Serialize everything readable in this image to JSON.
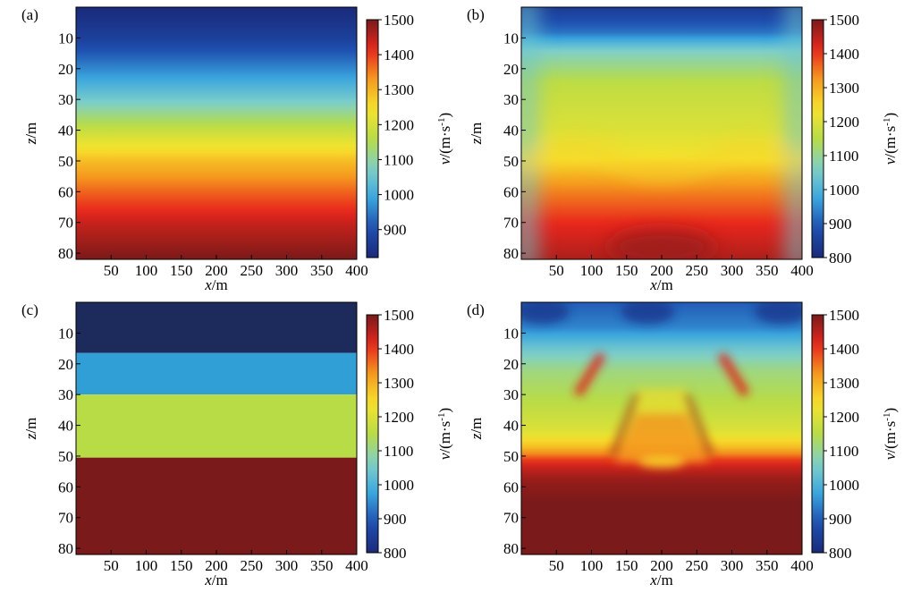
{
  "colors": {
    "colormap": [
      "#1a2a7a",
      "#1e4fb0",
      "#3aa6de",
      "#7fd0c8",
      "#b8dc46",
      "#f6e42c",
      "#f59a1e",
      "#e8261c",
      "#7a1a1a"
    ]
  },
  "chart_data": [
    {
      "type": "heatmap",
      "panel_label": "(a)",
      "xlabel_var": "x",
      "xlabel_unit": "/m",
      "ylabel_var": "z",
      "ylabel_unit": "/m",
      "xlim": [
        0,
        400
      ],
      "ylim": [
        0,
        82
      ],
      "y_inverted": true,
      "x_ticks": [
        50,
        100,
        150,
        200,
        250,
        300,
        350,
        400
      ],
      "y_ticks": [
        10,
        20,
        30,
        40,
        50,
        60,
        70,
        80
      ],
      "colorbar": {
        "var": "v",
        "unit_text": "/(m·s",
        "unit_exp": "-1",
        "unit_close": ")",
        "vmin": 820,
        "vmax": 1500,
        "ticks": [
          900,
          1000,
          1100,
          1200,
          1300,
          1400,
          1500
        ]
      },
      "field": {
        "kind": "gradient",
        "depth_profile": [
          [
            0,
            820
          ],
          [
            10,
            870
          ],
          [
            20,
            960
          ],
          [
            30,
            1060
          ],
          [
            40,
            1180
          ],
          [
            50,
            1290
          ],
          [
            60,
            1370
          ],
          [
            70,
            1440
          ],
          [
            82,
            1500
          ]
        ]
      }
    },
    {
      "type": "heatmap",
      "panel_label": "(b)",
      "xlabel_var": "x",
      "xlabel_unit": "/m",
      "ylabel_var": "z",
      "ylabel_unit": "/m",
      "xlim": [
        0,
        400
      ],
      "ylim": [
        0,
        82
      ],
      "y_inverted": true,
      "x_ticks": [
        50,
        100,
        150,
        200,
        250,
        300,
        350,
        400
      ],
      "y_ticks": [
        10,
        20,
        30,
        40,
        50,
        60,
        70,
        80
      ],
      "colorbar": {
        "var": "v",
        "unit_text": "/(m·s",
        "unit_exp": "-1",
        "unit_close": ")",
        "vmin": 800,
        "vmax": 1500,
        "ticks": [
          800,
          900,
          1000,
          1100,
          1200,
          1300,
          1400,
          1500
        ]
      },
      "field": {
        "kind": "smoothed",
        "depth_profile": [
          [
            0,
            840
          ],
          [
            8,
            920
          ],
          [
            14,
            1060
          ],
          [
            25,
            1160
          ],
          [
            40,
            1200
          ],
          [
            48,
            1230
          ],
          [
            58,
            1330
          ],
          [
            70,
            1410
          ],
          [
            82,
            1460
          ]
        ]
      }
    },
    {
      "type": "heatmap",
      "panel_label": "(c)",
      "xlabel_var": "x",
      "xlabel_unit": "/m",
      "ylabel_var": "z",
      "ylabel_unit": "/m",
      "xlim": [
        0,
        400
      ],
      "ylim": [
        0,
        82
      ],
      "y_inverted": true,
      "x_ticks": [
        50,
        100,
        150,
        200,
        250,
        300,
        350,
        400
      ],
      "y_ticks": [
        10,
        20,
        30,
        40,
        50,
        60,
        70,
        80
      ],
      "colorbar": {
        "var": "v",
        "unit_text": "/(m·s",
        "unit_exp": "-1",
        "unit_close": ")",
        "vmin": 800,
        "vmax": 1500,
        "ticks": [
          800,
          900,
          1000,
          1100,
          1200,
          1300,
          1400,
          1500
        ]
      },
      "field": {
        "kind": "layers",
        "layers": [
          {
            "z_top": 0,
            "z_bottom": 16.5,
            "velocity": 820,
            "color": "#1c2a5c"
          },
          {
            "z_top": 16.5,
            "z_bottom": 30,
            "velocity": 1000,
            "color": "#2f9fd6"
          },
          {
            "z_top": 30,
            "z_bottom": 50.5,
            "velocity": 1200,
            "color": "#b8dc46"
          },
          {
            "z_top": 50.5,
            "z_bottom": 82,
            "velocity": 1500,
            "color": "#7a1a1a"
          }
        ]
      }
    },
    {
      "type": "heatmap",
      "panel_label": "(d)",
      "xlabel_var": "x",
      "xlabel_unit": "/m",
      "ylabel_var": "z",
      "ylabel_unit": "/m",
      "xlim": [
        0,
        400
      ],
      "ylim": [
        0,
        82
      ],
      "y_inverted": true,
      "x_ticks": [
        50,
        100,
        150,
        200,
        250,
        300,
        350,
        400
      ],
      "y_ticks": [
        10,
        20,
        30,
        40,
        50,
        60,
        70,
        80
      ],
      "colorbar": {
        "var": "v",
        "unit_text": "/(m·s",
        "unit_exp": "-1",
        "unit_close": ")",
        "vmin": 800,
        "vmax": 1500,
        "ticks": [
          800,
          900,
          1000,
          1100,
          1200,
          1300,
          1400,
          1500
        ]
      },
      "field": {
        "kind": "inverted",
        "depth_profile": [
          [
            0,
            900
          ],
          [
            8,
            940
          ],
          [
            15,
            1040
          ],
          [
            22,
            1110
          ],
          [
            32,
            1150
          ],
          [
            42,
            1200
          ],
          [
            48,
            1300
          ],
          [
            52,
            1420
          ],
          [
            58,
            1480
          ],
          [
            65,
            1500
          ],
          [
            82,
            1500
          ]
        ]
      }
    }
  ]
}
